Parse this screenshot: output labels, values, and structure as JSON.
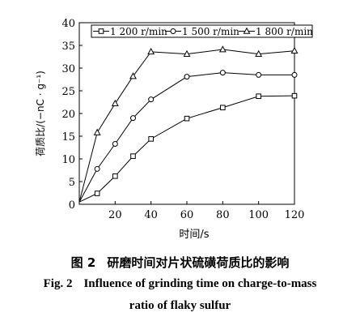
{
  "chart_data": {
    "type": "line",
    "xlabel": "时间/s",
    "ylabel": "荷质比/(−nC · g⁻¹)",
    "xlim": [
      0,
      120
    ],
    "ylim": [
      0,
      40
    ],
    "xticks": [
      20,
      40,
      60,
      80,
      100,
      120
    ],
    "yticks": [
      0,
      5,
      10,
      15,
      20,
      25,
      30,
      35,
      40
    ],
    "grid": false,
    "legend_position": "top",
    "x": [
      0,
      10,
      20,
      30,
      40,
      60,
      80,
      100,
      120
    ],
    "series": [
      {
        "name": "1 200 r/min",
        "marker": "square",
        "values": [
          0.5,
          2.4,
          6.2,
          10.6,
          14.4,
          18.9,
          21.3,
          23.8,
          23.9
        ]
      },
      {
        "name": "1 500 r/min",
        "marker": "circle",
        "values": [
          0.5,
          7.8,
          13.3,
          19.0,
          23.1,
          28.1,
          29.0,
          28.5,
          28.5
        ]
      },
      {
        "name": "1 800 r/min",
        "marker": "triangle",
        "values": [
          0.5,
          15.8,
          22.2,
          28.2,
          33.6,
          33.1,
          34.1,
          33.1,
          33.8
        ]
      }
    ]
  },
  "caption": {
    "cn_fig": "图 2",
    "cn_title": "研磨时间对片状硫磺荷质比的影响",
    "en_fig": "Fig. 2",
    "en_title_line1": "Influence of grinding time on charge-to-mass",
    "en_title_line2": "ratio of flaky sulfur"
  }
}
